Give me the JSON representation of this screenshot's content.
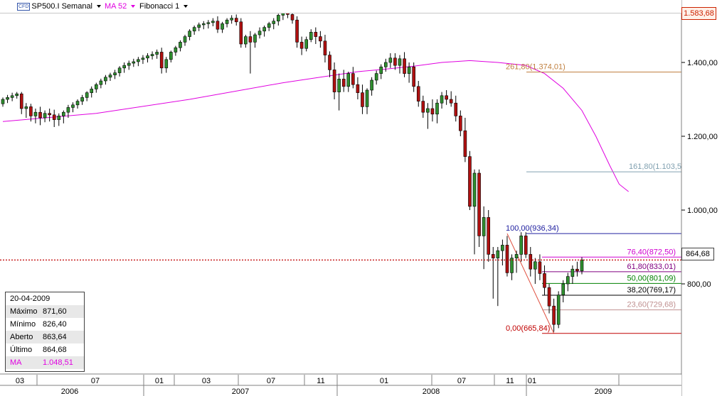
{
  "toolbar": {
    "symbol_icon": "CFD",
    "symbol": "SP500.I Semanal",
    "indicator": "MA 52",
    "indicator_color": "#e000e0",
    "tool": "Fibonacci 1"
  },
  "price_axis": {
    "last_price_badge": "1.583,68",
    "current_price_label": "864,68"
  },
  "info_box": {
    "date": "20-04-2009",
    "rows": [
      {
        "label": "Máximo",
        "value": "871,60"
      },
      {
        "label": "Mínimo",
        "value": "826,40"
      },
      {
        "label": "Aberto",
        "value": "863,64"
      },
      {
        "label": "Último",
        "value": "864,68"
      },
      {
        "label": "MA",
        "value": "1.048,51"
      }
    ]
  },
  "chart_data": {
    "type": "candlestick",
    "y_ticks": [
      {
        "value": 1400,
        "label": "1.400,00"
      },
      {
        "value": 1200,
        "label": "1.200,00"
      },
      {
        "value": 1000,
        "label": "1.000,00"
      },
      {
        "value": 800,
        "label": "800,00"
      }
    ],
    "ylim": [
      640,
      1590
    ],
    "x_months": [
      "03",
      "07",
      "01",
      "03",
      "07",
      "11",
      "01",
      "07",
      "11",
      "01"
    ],
    "x_years": [
      "2006",
      "2007",
      "2008",
      "2009"
    ],
    "current_price": 864.68,
    "fibonacci": [
      {
        "label": "261,80(1.374,01)",
        "value": 1374.01,
        "color": "#c08040"
      },
      {
        "label": "161,80(1.103,5",
        "value": 1103.5,
        "color": "#80a0b0"
      },
      {
        "label": "100,00(936,34)",
        "value": 936.34,
        "color": "#2020a0"
      },
      {
        "label": "76,40(872,50)",
        "value": 872.5,
        "color": "#d000d0"
      },
      {
        "label": "61,80(833,01)",
        "value": 833.01,
        "color": "#800080"
      },
      {
        "label": "50,00(801,09)",
        "value": 801.09,
        "color": "#008000"
      },
      {
        "label": "38,20(769,17)",
        "value": 769.17,
        "color": "#000000"
      },
      {
        "label": "23,60(729,68)",
        "value": 729.68,
        "color": "#c09090"
      },
      {
        "label": "0,00(665,84)",
        "value": 665.84,
        "color": "#c00000"
      }
    ],
    "candles": [
      [
        1288,
        1305,
        1280,
        1300
      ],
      [
        1300,
        1312,
        1290,
        1305
      ],
      [
        1305,
        1318,
        1295,
        1310
      ],
      [
        1310,
        1320,
        1302,
        1315
      ],
      [
        1315,
        1320,
        1260,
        1275
      ],
      [
        1275,
        1290,
        1250,
        1280
      ],
      [
        1280,
        1288,
        1240,
        1255
      ],
      [
        1255,
        1275,
        1235,
        1265
      ],
      [
        1265,
        1280,
        1230,
        1250
      ],
      [
        1250,
        1270,
        1238,
        1262
      ],
      [
        1262,
        1275,
        1240,
        1258
      ],
      [
        1258,
        1272,
        1225,
        1245
      ],
      [
        1245,
        1262,
        1228,
        1255
      ],
      [
        1255,
        1270,
        1235,
        1265
      ],
      [
        1265,
        1285,
        1250,
        1278
      ],
      [
        1278,
        1292,
        1265,
        1285
      ],
      [
        1285,
        1300,
        1275,
        1295
      ],
      [
        1295,
        1312,
        1285,
        1305
      ],
      [
        1305,
        1322,
        1295,
        1318
      ],
      [
        1318,
        1335,
        1305,
        1328
      ],
      [
        1328,
        1345,
        1318,
        1340
      ],
      [
        1340,
        1356,
        1330,
        1350
      ],
      [
        1350,
        1366,
        1340,
        1360
      ],
      [
        1360,
        1372,
        1350,
        1366
      ],
      [
        1366,
        1380,
        1355,
        1372
      ],
      [
        1372,
        1390,
        1362,
        1385
      ],
      [
        1385,
        1400,
        1372,
        1392
      ],
      [
        1392,
        1405,
        1380,
        1398
      ],
      [
        1398,
        1410,
        1388,
        1402
      ],
      [
        1402,
        1415,
        1390,
        1408
      ],
      [
        1408,
        1420,
        1396,
        1412
      ],
      [
        1412,
        1425,
        1400,
        1418
      ],
      [
        1418,
        1430,
        1408,
        1422
      ],
      [
        1422,
        1435,
        1410,
        1428
      ],
      [
        1428,
        1440,
        1370,
        1385
      ],
      [
        1385,
        1415,
        1372,
        1408
      ],
      [
        1408,
        1432,
        1400,
        1428
      ],
      [
        1428,
        1445,
        1418,
        1440
      ],
      [
        1440,
        1460,
        1430,
        1455
      ],
      [
        1455,
        1475,
        1445,
        1470
      ],
      [
        1470,
        1490,
        1460,
        1485
      ],
      [
        1485,
        1500,
        1475,
        1495
      ],
      [
        1495,
        1508,
        1485,
        1502
      ],
      [
        1502,
        1512,
        1490,
        1505
      ],
      [
        1505,
        1515,
        1492,
        1508
      ],
      [
        1508,
        1520,
        1498,
        1512
      ],
      [
        1512,
        1525,
        1480,
        1490
      ],
      [
        1490,
        1510,
        1480,
        1505
      ],
      [
        1505,
        1520,
        1495,
        1515
      ],
      [
        1515,
        1528,
        1505,
        1520
      ],
      [
        1520,
        1530,
        1500,
        1510
      ],
      [
        1510,
        1520,
        1440,
        1450
      ],
      [
        1450,
        1475,
        1440,
        1470
      ],
      [
        1470,
        1485,
        1370,
        1455
      ],
      [
        1455,
        1480,
        1440,
        1475
      ],
      [
        1475,
        1495,
        1465,
        1485
      ],
      [
        1485,
        1500,
        1470,
        1495
      ],
      [
        1495,
        1510,
        1485,
        1505
      ],
      [
        1505,
        1520,
        1490,
        1512
      ],
      [
        1512,
        1532,
        1500,
        1528
      ],
      [
        1528,
        1548,
        1515,
        1540
      ],
      [
        1540,
        1555,
        1520,
        1530
      ],
      [
        1530,
        1550,
        1505,
        1515
      ],
      [
        1515,
        1525,
        1440,
        1455
      ],
      [
        1455,
        1470,
        1420,
        1438
      ],
      [
        1438,
        1470,
        1430,
        1462
      ],
      [
        1462,
        1490,
        1455,
        1482
      ],
      [
        1482,
        1495,
        1450,
        1470
      ],
      [
        1470,
        1485,
        1440,
        1458
      ],
      [
        1458,
        1475,
        1400,
        1420
      ],
      [
        1420,
        1430,
        1360,
        1380
      ],
      [
        1380,
        1400,
        1300,
        1320
      ],
      [
        1320,
        1370,
        1270,
        1355
      ],
      [
        1355,
        1380,
        1320,
        1335
      ],
      [
        1335,
        1375,
        1320,
        1370
      ],
      [
        1370,
        1388,
        1330,
        1340
      ],
      [
        1340,
        1360,
        1300,
        1318
      ],
      [
        1318,
        1340,
        1260,
        1280
      ],
      [
        1280,
        1330,
        1260,
        1325
      ],
      [
        1325,
        1360,
        1310,
        1352
      ],
      [
        1352,
        1378,
        1340,
        1370
      ],
      [
        1370,
        1395,
        1355,
        1388
      ],
      [
        1388,
        1410,
        1375,
        1400
      ],
      [
        1400,
        1425,
        1385,
        1412
      ],
      [
        1412,
        1425,
        1380,
        1392
      ],
      [
        1392,
        1420,
        1370,
        1410
      ],
      [
        1410,
        1428,
        1360,
        1370
      ],
      [
        1370,
        1400,
        1345,
        1388
      ],
      [
        1388,
        1400,
        1320,
        1335
      ],
      [
        1335,
        1350,
        1280,
        1295
      ],
      [
        1295,
        1310,
        1250,
        1265
      ],
      [
        1265,
        1290,
        1220,
        1275
      ],
      [
        1275,
        1300,
        1240,
        1260
      ],
      [
        1260,
        1300,
        1235,
        1290
      ],
      [
        1290,
        1320,
        1275,
        1310
      ],
      [
        1310,
        1325,
        1285,
        1300
      ],
      [
        1300,
        1322,
        1280,
        1290
      ],
      [
        1290,
        1310,
        1240,
        1255
      ],
      [
        1255,
        1270,
        1200,
        1215
      ],
      [
        1215,
        1250,
        1130,
        1145
      ],
      [
        1145,
        1160,
        1000,
        1010
      ],
      [
        1010,
        1110,
        880,
        1100
      ],
      [
        1100,
        1110,
        900,
        930
      ],
      [
        930,
        1010,
        840,
        980
      ],
      [
        980,
        1000,
        860,
        880
      ],
      [
        880,
        900,
        760,
        870
      ],
      [
        870,
        900,
        740,
        890
      ],
      [
        890,
        920,
        850,
        905
      ],
      [
        905,
        930,
        820,
        830
      ],
      [
        830,
        880,
        810,
        870
      ],
      [
        870,
        890,
        830,
        880
      ],
      [
        880,
        940,
        860,
        930
      ],
      [
        930,
        940,
        870,
        880
      ],
      [
        880,
        900,
        820,
        840
      ],
      [
        840,
        870,
        800,
        860
      ],
      [
        860,
        880,
        810,
        828
      ],
      [
        828,
        850,
        770,
        790
      ],
      [
        790,
        800,
        720,
        740
      ],
      [
        740,
        760,
        670,
        690
      ],
      [
        690,
        780,
        680,
        770
      ],
      [
        770,
        810,
        750,
        800
      ],
      [
        800,
        830,
        780,
        820
      ],
      [
        820,
        850,
        800,
        840
      ],
      [
        840,
        860,
        820,
        835
      ],
      [
        835,
        872,
        826,
        865
      ]
    ],
    "ma52": [
      [
        0,
        1240
      ],
      [
        20,
        1262
      ],
      [
        40,
        1300
      ],
      [
        60,
        1345
      ],
      [
        68,
        1360
      ],
      [
        76,
        1375
      ],
      [
        82,
        1382
      ],
      [
        88,
        1390
      ],
      [
        94,
        1400
      ],
      [
        100,
        1405
      ],
      [
        106,
        1400
      ],
      [
        112,
        1392
      ],
      [
        116,
        1370
      ],
      [
        120,
        1330
      ],
      [
        124,
        1270
      ],
      [
        127,
        1200
      ],
      [
        130,
        1120
      ],
      [
        132,
        1070
      ],
      [
        134,
        1050
      ]
    ]
  }
}
